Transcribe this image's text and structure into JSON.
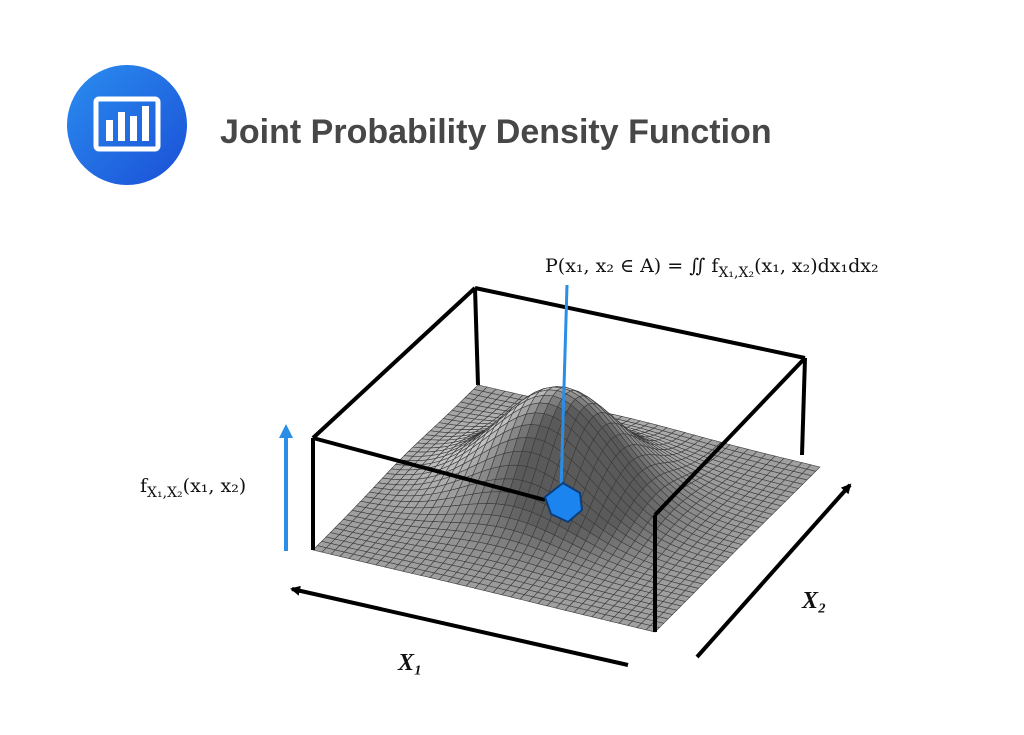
{
  "header": {
    "title": "Joint Probability Density Function"
  },
  "diagram": {
    "probability_label": [
      "P(x₁, x₂ ∈ A) = ∬ f",
      {
        "sub": "X₁,X₂"
      },
      "(x₁, x₂)dx₁dx₂"
    ],
    "density_label": [
      "f",
      {
        "sub": "X₁,X₂"
      },
      "(x₁, x₂)"
    ],
    "x1_label": "X₁",
    "x2_label": "X₂"
  }
}
